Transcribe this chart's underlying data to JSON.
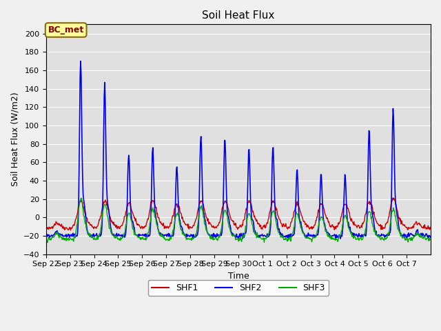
{
  "title": "Soil Heat Flux",
  "xlabel": "Time",
  "ylabel": "Soil Heat Flux (W/m2)",
  "ylim": [
    -40,
    210
  ],
  "yticks": [
    -40,
    -20,
    0,
    20,
    40,
    60,
    80,
    100,
    120,
    140,
    160,
    180,
    200
  ],
  "xtick_labels": [
    "Sep 22",
    "Sep 23",
    "Sep 24",
    "Sep 25",
    "Sep 26",
    "Sep 27",
    "Sep 28",
    "Sep 29",
    "Sep 30",
    "Oct 1",
    "Oct 2",
    "Oct 3",
    "Oct 4",
    "Oct 5",
    "Oct 6",
    "Oct 7"
  ],
  "shf1_color": "#cc0000",
  "shf2_color": "#0000ee",
  "shf3_color": "#00aa00",
  "bg_color": "#e0e0e0",
  "fig_bg_color": "#f0f0f0",
  "legend_label": "BC_met",
  "legend_box_color": "#ffff99",
  "legend_box_border": "#8b6914",
  "legend_text_color": "#8b0000",
  "shf1_lw": 1.0,
  "shf2_lw": 1.2,
  "shf3_lw": 1.0,
  "n_days": 16,
  "dt_hours": 0.5
}
